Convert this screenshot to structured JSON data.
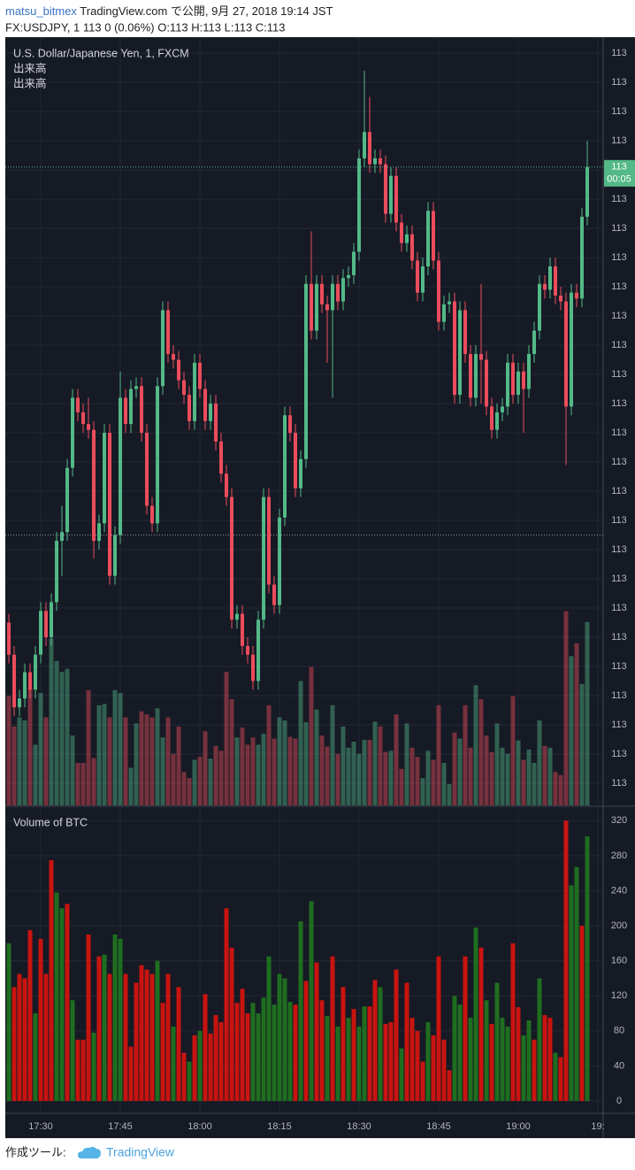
{
  "header": {
    "author": "matsu_bitmex",
    "published": " TradingView.com で公開, 9月 27, 2018 19:14 JST",
    "symbol_line": "FX:USDJPY, 1 113 0 (0.06%) O:113 H:113 L:113 C:113"
  },
  "footer": {
    "made_with": "作成ツール:",
    "brand": "TradingView"
  },
  "chart_data": {
    "type": "candlestick",
    "title": "U.S. Dollar/Japanese Yen, 1, FXCM",
    "indicator_labels": [
      "出来高",
      "出来高"
    ],
    "up_color": "#53b987",
    "down_color": "#eb4d5c",
    "grid": true,
    "last_price_label": "113",
    "countdown": "00:05",
    "reference_line": 113.035,
    "xlim": [
      -0.67,
      112
    ],
    "xticks": [
      {
        "value": 6,
        "label": "17:30"
      },
      {
        "value": 21,
        "label": "17:45"
      },
      {
        "value": 36,
        "label": "18:00"
      },
      {
        "value": 51,
        "label": "18:15"
      },
      {
        "value": 66,
        "label": "18:30"
      },
      {
        "value": 81,
        "label": "18:45"
      },
      {
        "value": 96,
        "label": "19:00"
      },
      {
        "value": 111,
        "label": "19:"
      }
    ],
    "ylim": [
      112.9424,
      113.2055
    ],
    "yticks": [
      {
        "value": 113.2,
        "label": "113"
      },
      {
        "value": 113.19,
        "label": "113"
      },
      {
        "value": 113.18,
        "label": "113"
      },
      {
        "value": 113.17,
        "label": "113"
      },
      {
        "value": 113.16,
        "label": "113"
      },
      {
        "value": 113.15,
        "label": "113"
      },
      {
        "value": 113.14,
        "label": "113"
      },
      {
        "value": 113.13,
        "label": "113"
      },
      {
        "value": 113.12,
        "label": "113"
      },
      {
        "value": 113.11,
        "label": "113"
      },
      {
        "value": 113.1,
        "label": "113"
      },
      {
        "value": 113.09,
        "label": "113"
      },
      {
        "value": 113.08,
        "label": "113"
      },
      {
        "value": 113.07,
        "label": "113"
      },
      {
        "value": 113.06,
        "label": "113"
      },
      {
        "value": 113.05,
        "label": "113"
      },
      {
        "value": 113.04,
        "label": "113"
      },
      {
        "value": 113.03,
        "label": "113"
      },
      {
        "value": 113.02,
        "label": "113"
      },
      {
        "value": 113.01,
        "label": "113"
      },
      {
        "value": 113.0,
        "label": "113"
      },
      {
        "value": 112.99,
        "label": "113"
      },
      {
        "value": 112.98,
        "label": "113"
      },
      {
        "value": 112.97,
        "label": "113"
      },
      {
        "value": 112.96,
        "label": "113"
      },
      {
        "value": 112.95,
        "label": "113"
      }
    ],
    "ohlc": [
      [
        113.005,
        113.008,
        112.991,
        112.994
      ],
      [
        112.994,
        112.997,
        112.973,
        112.976
      ],
      [
        112.976,
        112.982,
        112.973,
        112.979
      ],
      [
        112.979,
        112.991,
        112.976,
        112.988
      ],
      [
        112.988,
        112.991,
        112.979,
        112.982
      ],
      [
        112.982,
        112.997,
        112.979,
        112.994
      ],
      [
        112.994,
        113.012,
        112.991,
        113.009
      ],
      [
        113.009,
        113.012,
        112.997,
        113.0
      ],
      [
        113.0,
        113.015,
        112.997,
        113.012
      ],
      [
        113.012,
        113.036,
        113.009,
        113.033
      ],
      [
        113.033,
        113.045,
        113.021,
        113.036
      ],
      [
        113.036,
        113.061,
        113.033,
        113.058
      ],
      [
        113.058,
        113.085,
        113.055,
        113.082
      ],
      [
        113.082,
        113.085,
        113.074,
        113.077
      ],
      [
        113.077,
        113.08,
        113.07,
        113.073
      ],
      [
        113.073,
        113.082,
        113.068,
        113.071
      ],
      [
        113.071,
        113.074,
        113.027,
        113.033
      ],
      [
        113.033,
        113.042,
        113.03,
        113.039
      ],
      [
        113.039,
        113.073,
        113.036,
        113.07
      ],
      [
        113.07,
        113.073,
        113.018,
        113.021
      ],
      [
        113.021,
        113.038,
        113.018,
        113.035
      ],
      [
        113.035,
        113.091,
        113.032,
        113.082
      ],
      [
        113.082,
        113.085,
        113.07,
        113.073
      ],
      [
        113.073,
        113.088,
        113.07,
        113.085
      ],
      [
        113.085,
        113.089,
        113.082,
        113.086
      ],
      [
        113.086,
        113.089,
        113.067,
        113.07
      ],
      [
        113.07,
        113.073,
        113.042,
        113.045
      ],
      [
        113.045,
        113.048,
        113.036,
        113.039
      ],
      [
        113.039,
        113.089,
        113.036,
        113.086
      ],
      [
        113.086,
        113.115,
        113.083,
        113.112
      ],
      [
        113.112,
        113.115,
        113.094,
        113.097
      ],
      [
        113.097,
        113.1,
        113.092,
        113.095
      ],
      [
        113.095,
        113.098,
        113.085,
        113.088
      ],
      [
        113.088,
        113.091,
        113.08,
        113.083
      ],
      [
        113.083,
        113.086,
        113.071,
        113.074
      ],
      [
        113.074,
        113.097,
        113.071,
        113.094
      ],
      [
        113.094,
        113.097,
        113.082,
        113.085
      ],
      [
        113.085,
        113.088,
        113.071,
        113.074
      ],
      [
        113.074,
        113.083,
        113.071,
        113.08
      ],
      [
        113.08,
        113.083,
        113.064,
        113.067
      ],
      [
        113.067,
        113.07,
        113.053,
        113.056
      ],
      [
        113.056,
        113.059,
        113.045,
        113.048
      ],
      [
        113.048,
        113.051,
        113.003,
        113.006
      ],
      [
        113.006,
        113.011,
        113.003,
        113.008
      ],
      [
        113.008,
        113.011,
        112.994,
        112.997
      ],
      [
        112.997,
        113.0,
        112.991,
        112.994
      ],
      [
        112.994,
        112.997,
        112.982,
        112.985
      ],
      [
        112.985,
        113.009,
        112.982,
        113.006
      ],
      [
        113.006,
        113.051,
        113.003,
        113.048
      ],
      [
        113.048,
        113.051,
        113.015,
        113.018
      ],
      [
        113.018,
        113.021,
        113.008,
        113.011
      ],
      [
        113.011,
        113.044,
        113.008,
        113.041
      ],
      [
        113.041,
        113.079,
        113.038,
        113.076
      ],
      [
        113.076,
        113.079,
        113.067,
        113.07
      ],
      [
        113.07,
        113.073,
        113.048,
        113.051
      ],
      [
        113.051,
        113.064,
        113.048,
        113.061
      ],
      [
        113.061,
        113.124,
        113.058,
        113.121
      ],
      [
        113.121,
        113.139,
        113.102,
        113.105
      ],
      [
        113.105,
        113.124,
        113.102,
        113.121
      ],
      [
        113.121,
        113.124,
        113.111,
        113.114
      ],
      [
        113.114,
        113.117,
        113.094,
        113.112
      ],
      [
        113.112,
        113.124,
        113.082,
        113.121
      ],
      [
        113.121,
        113.124,
        113.112,
        113.115
      ],
      [
        113.115,
        113.126,
        113.112,
        113.123
      ],
      [
        113.123,
        113.127,
        113.12,
        113.124
      ],
      [
        113.124,
        113.135,
        113.121,
        113.132
      ],
      [
        113.132,
        113.167,
        113.129,
        113.164
      ],
      [
        113.164,
        113.194,
        113.161,
        113.173
      ],
      [
        113.173,
        113.185,
        113.159,
        113.162
      ],
      [
        113.162,
        113.167,
        113.159,
        113.164
      ],
      [
        113.164,
        113.167,
        113.159,
        113.162
      ],
      [
        113.162,
        113.165,
        113.142,
        113.145
      ],
      [
        113.145,
        113.161,
        113.142,
        113.158
      ],
      [
        113.158,
        113.161,
        113.139,
        113.142
      ],
      [
        113.142,
        113.145,
        113.132,
        113.135
      ],
      [
        113.135,
        113.141,
        113.132,
        113.138
      ],
      [
        113.138,
        113.141,
        113.126,
        113.129
      ],
      [
        113.129,
        113.132,
        113.115,
        113.118
      ],
      [
        113.118,
        113.13,
        113.115,
        113.127
      ],
      [
        113.127,
        113.149,
        113.124,
        113.146
      ],
      [
        113.146,
        113.149,
        113.126,
        113.129
      ],
      [
        113.129,
        113.132,
        113.105,
        113.108
      ],
      [
        113.108,
        113.117,
        113.105,
        113.114
      ],
      [
        113.114,
        113.118,
        113.111,
        113.115
      ],
      [
        113.115,
        113.118,
        113.08,
        113.083
      ],
      [
        113.083,
        113.115,
        113.08,
        113.112
      ],
      [
        113.112,
        113.115,
        113.094,
        113.097
      ],
      [
        113.097,
        113.1,
        113.079,
        113.082
      ],
      [
        113.082,
        113.1,
        113.079,
        113.097
      ],
      [
        113.097,
        113.121,
        113.08,
        113.095
      ],
      [
        113.095,
        113.098,
        113.076,
        113.079
      ],
      [
        113.079,
        113.082,
        113.068,
        113.071
      ],
      [
        113.071,
        113.08,
        113.068,
        113.077
      ],
      [
        113.077,
        113.082,
        113.074,
        113.079
      ],
      [
        113.079,
        113.097,
        113.076,
        113.094
      ],
      [
        113.094,
        113.097,
        113.08,
        113.083
      ],
      [
        113.083,
        113.094,
        113.08,
        113.091
      ],
      [
        113.091,
        113.094,
        113.07,
        113.085
      ],
      [
        113.085,
        113.1,
        113.082,
        113.097
      ],
      [
        113.097,
        113.108,
        113.094,
        113.105
      ],
      [
        113.105,
        113.124,
        113.102,
        113.121
      ],
      [
        113.121,
        113.124,
        113.116,
        113.119
      ],
      [
        113.119,
        113.13,
        113.116,
        113.127
      ],
      [
        113.127,
        113.13,
        113.114,
        113.117
      ],
      [
        113.117,
        113.12,
        113.112,
        113.115
      ],
      [
        113.115,
        113.118,
        113.059,
        113.079
      ],
      [
        113.079,
        113.121,
        113.076,
        113.118
      ],
      [
        113.118,
        113.121,
        113.113,
        113.116
      ],
      [
        113.116,
        113.147,
        113.113,
        113.144
      ],
      [
        113.144,
        113.17,
        113.141,
        113.161
      ]
    ],
    "volume": {
      "title": "Volume of BTC",
      "ylim": [
        -14.1,
        335.4
      ],
      "yticks": [
        0,
        40,
        80,
        120,
        160,
        200,
        240,
        280,
        320
      ],
      "values": [
        180,
        130,
        145,
        140,
        195,
        100,
        185,
        145,
        275,
        238,
        220,
        225,
        115,
        70,
        70,
        190,
        78,
        165,
        167,
        145,
        190,
        185,
        145,
        62,
        135,
        155,
        150,
        145,
        160,
        112,
        145,
        85,
        130,
        55,
        45,
        75,
        80,
        122,
        77,
        98,
        90,
        220,
        175,
        112,
        128,
        100,
        112,
        100,
        118,
        165,
        110,
        145,
        140,
        113,
        110,
        205,
        137,
        228,
        158,
        115,
        97,
        165,
        85,
        130,
        95,
        105,
        85,
        108,
        108,
        138,
        130,
        88,
        90,
        150,
        60,
        135,
        95,
        80,
        45,
        90,
        75,
        165,
        70,
        35,
        120,
        110,
        165,
        95,
        198,
        175,
        115,
        88,
        135,
        95,
        85,
        180,
        107,
        75,
        92,
        70,
        140,
        98,
        95,
        55,
        50,
        320,
        246,
        267,
        200,
        302
      ],
      "colors": [
        "#1f6e1f",
        "#c8140f",
        "#c8140f",
        "#c8140f",
        "#c8140f",
        "#1f6e1f",
        "#c8140f",
        "#c8140f",
        "#c8140f",
        "#1f6e1f",
        "#1f6e1f",
        "#c8140f",
        "#1f6e1f",
        "#c8140f",
        "#c8140f",
        "#c8140f",
        "#1f6e1f",
        "#c8140f",
        "#1f6e1f",
        "#c8140f",
        "#1f6e1f",
        "#1f6e1f",
        "#c8140f",
        "#c8140f",
        "#c8140f",
        "#c8140f",
        "#c8140f",
        "#c8140f",
        "#1f6e1f",
        "#c8140f",
        "#c8140f",
        "#1f6e1f",
        "#c8140f",
        "#c8140f",
        "#1f6e1f",
        "#c8140f",
        "#1f6e1f",
        "#c8140f",
        "#c8140f",
        "#c8140f",
        "#c8140f",
        "#c8140f",
        "#c8140f",
        "#c8140f",
        "#c8140f",
        "#c8140f",
        "#1f6e1f",
        "#1f6e1f",
        "#1f6e1f",
        "#1f6e1f",
        "#1f6e1f",
        "#1f6e1f",
        "#1f6e1f",
        "#1f6e1f",
        "#c8140f",
        "#1f6e1f",
        "#c8140f",
        "#1f6e1f",
        "#c8140f",
        "#c8140f",
        "#1f6e1f",
        "#c8140f",
        "#1f6e1f",
        "#c8140f",
        "#1f6e1f",
        "#c8140f",
        "#1f6e1f",
        "#1f6e1f",
        "#c8140f",
        "#c8140f",
        "#1f6e1f",
        "#c8140f",
        "#c8140f",
        "#c8140f",
        "#1f6e1f",
        "#c8140f",
        "#c8140f",
        "#c8140f",
        "#c8140f",
        "#1f6e1f",
        "#c8140f",
        "#c8140f",
        "#c8140f",
        "#c8140f",
        "#1f6e1f",
        "#1f6e1f",
        "#c8140f",
        "#1f6e1f",
        "#1f6e1f",
        "#c8140f",
        "#1f6e1f",
        "#c8140f",
        "#1f6e1f",
        "#1f6e1f",
        "#1f6e1f",
        "#c8140f",
        "#c8140f",
        "#1f6e1f",
        "#1f6e1f",
        "#c8140f",
        "#1f6e1f",
        "#c8140f",
        "#c8140f",
        "#1f6e1f",
        "#c8140f",
        "#c8140f",
        "#1f6e1f",
        "#1f6e1f",
        "#c8140f",
        "#1f6e1f"
      ]
    }
  }
}
